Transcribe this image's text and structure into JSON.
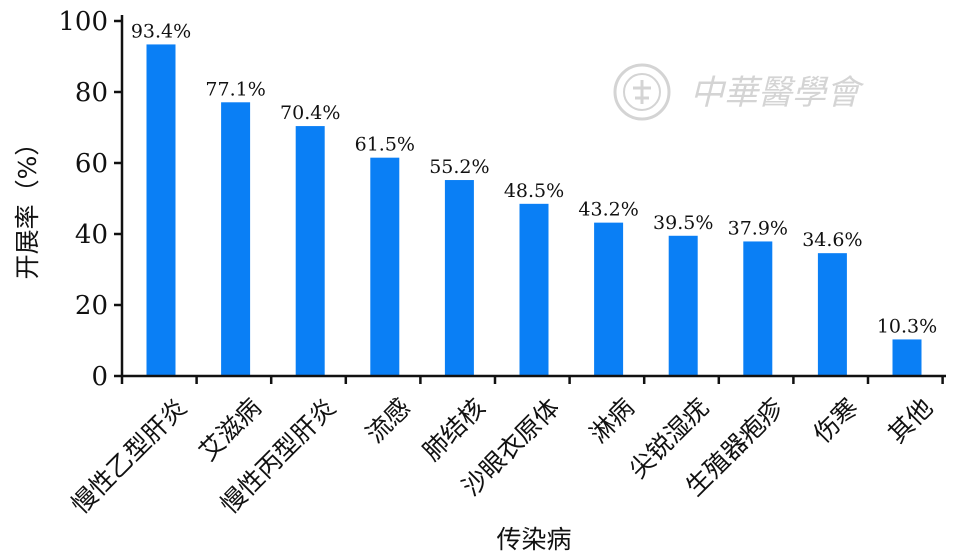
{
  "chart_data": {
    "type": "bar",
    "categories": [
      "慢性乙型肝炎",
      "艾滋病",
      "慢性丙型肝炎",
      "流感",
      "肺结核",
      "沙眼衣原体",
      "淋病",
      "尖锐湿疣",
      "生殖器疱疹",
      "伤寒",
      "其他"
    ],
    "values": [
      93.4,
      77.1,
      70.4,
      61.5,
      55.2,
      48.5,
      43.2,
      39.5,
      37.9,
      34.6,
      10.3
    ],
    "value_labels": [
      "93.4%",
      "77.1%",
      "70.4%",
      "61.5%",
      "55.2%",
      "48.5%",
      "43.2%",
      "39.5%",
      "37.9%",
      "34.6%",
      "10.3%"
    ],
    "xlabel": "传染病",
    "ylabel": "开展率（%）",
    "ylim": [
      0,
      100
    ],
    "yticks": [
      0,
      20,
      40,
      60,
      80,
      100
    ],
    "grid": false,
    "bar_color": "#0a7ff5",
    "axis_color": "#111111"
  },
  "watermark": {
    "text": "中華醫學會",
    "color": "#d4d4d4"
  }
}
